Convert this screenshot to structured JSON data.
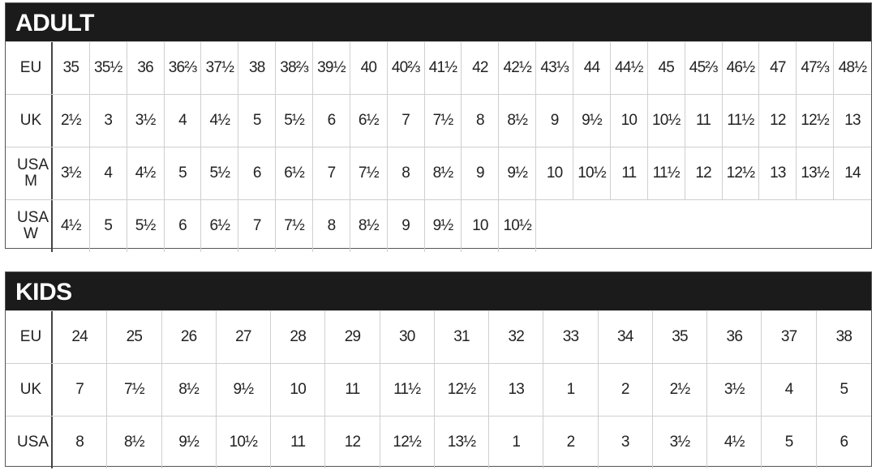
{
  "adult": {
    "title": "ADULT",
    "rows": [
      {
        "label": "EU",
        "cells": [
          "35",
          "35½",
          "36",
          "36⅔",
          "37½",
          "38",
          "38⅔",
          "39½",
          "40",
          "40⅔",
          "41½",
          "42",
          "42½",
          "43⅓",
          "44",
          "44½",
          "45",
          "45⅔",
          "46½",
          "47",
          "47⅔",
          "48½"
        ]
      },
      {
        "label": "UK",
        "cells": [
          "2½",
          "3",
          "3½",
          "4",
          "4½",
          "5",
          "5½",
          "6",
          "6½",
          "7",
          "7½",
          "8",
          "8½",
          "9",
          "9½",
          "10",
          "10½",
          "11",
          "11½",
          "12",
          "12½",
          "13"
        ]
      },
      {
        "label": "USA M",
        "cells": [
          "3½",
          "4",
          "4½",
          "5",
          "5½",
          "6",
          "6½",
          "7",
          "7½",
          "8",
          "8½",
          "9",
          "9½",
          "10",
          "10½",
          "11",
          "11½",
          "12",
          "12½",
          "13",
          "13½",
          "14"
        ]
      },
      {
        "label": "USA W",
        "cells": [
          "4½",
          "5",
          "5½",
          "6",
          "6½",
          "7",
          "7½",
          "8",
          "8½",
          "9",
          "9½",
          "10",
          "10½"
        ]
      }
    ]
  },
  "kids": {
    "title": "KIDS",
    "rows": [
      {
        "label": "EU",
        "cells": [
          "24",
          "25",
          "26",
          "27",
          "28",
          "29",
          "30",
          "31",
          "32",
          "33",
          "34",
          "35",
          "36",
          "37",
          "38"
        ]
      },
      {
        "label": "UK",
        "cells": [
          "7",
          "7½",
          "8½",
          "9½",
          "10",
          "11",
          "11½",
          "12½",
          "13",
          "1",
          "2",
          "2½",
          "3½",
          "4",
          "5"
        ]
      },
      {
        "label": "USA",
        "cells": [
          "8",
          "8½",
          "9½",
          "10½",
          "11",
          "12",
          "12½",
          "13½",
          "1",
          "2",
          "3",
          "3½",
          "4½",
          "5",
          "6"
        ]
      }
    ]
  }
}
